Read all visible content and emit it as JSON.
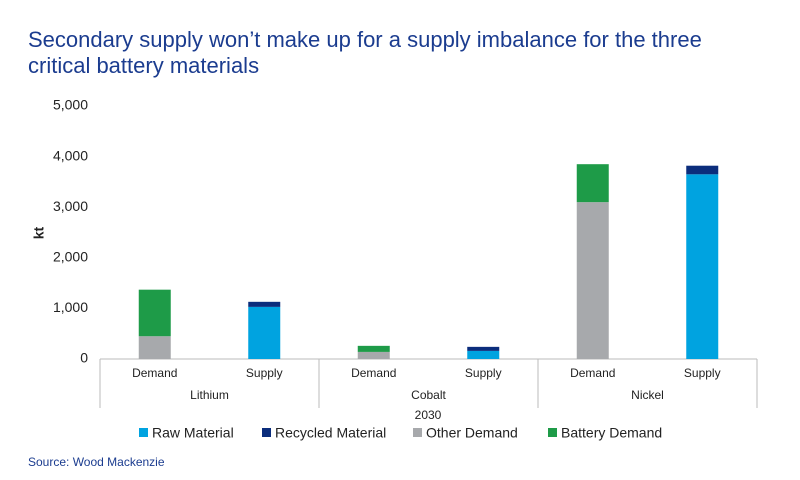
{
  "chart_data": {
    "type": "bar",
    "stacked": true,
    "title": [
      "Secondary supply won’t make up for a supply imbalance for the three",
      "critical battery materials"
    ],
    "y_label": "kt",
    "x_label": "2030",
    "source": "Source: Wood Mackenzie",
    "categories": [
      "Demand",
      "Supply",
      "Demand",
      "Supply",
      "Demand",
      "Supply"
    ],
    "groups": [
      "Lithium",
      "Cobalt",
      "Nickel"
    ],
    "series": [
      {
        "name": "Raw Material",
        "color": "#00a3e0",
        "values": [
          null,
          1030,
          null,
          160,
          null,
          3650
        ]
      },
      {
        "name": "Recycled Material",
        "color": "#0b2d7c",
        "values": [
          null,
          100,
          null,
          80,
          null,
          170
        ]
      },
      {
        "name": "Other Demand",
        "color": "#a7a9ac",
        "values": [
          450,
          null,
          140,
          null,
          3100,
          null
        ]
      },
      {
        "name": "Battery Demand",
        "color": "#1e9b48",
        "values": [
          920,
          null,
          120,
          null,
          750,
          null
        ]
      }
    ],
    "ylim": [
      0,
      5000
    ],
    "yticks": [
      0,
      {
        "value": 1000,
        "label": "1,000"
      },
      {
        "value": 2000,
        "label": "2,000"
      },
      {
        "value": 3000,
        "label": "3,000"
      },
      {
        "value": 4000,
        "label": "4,000"
      },
      {
        "value": 5000,
        "label": "5,000"
      }
    ],
    "legend": "bottom"
  }
}
